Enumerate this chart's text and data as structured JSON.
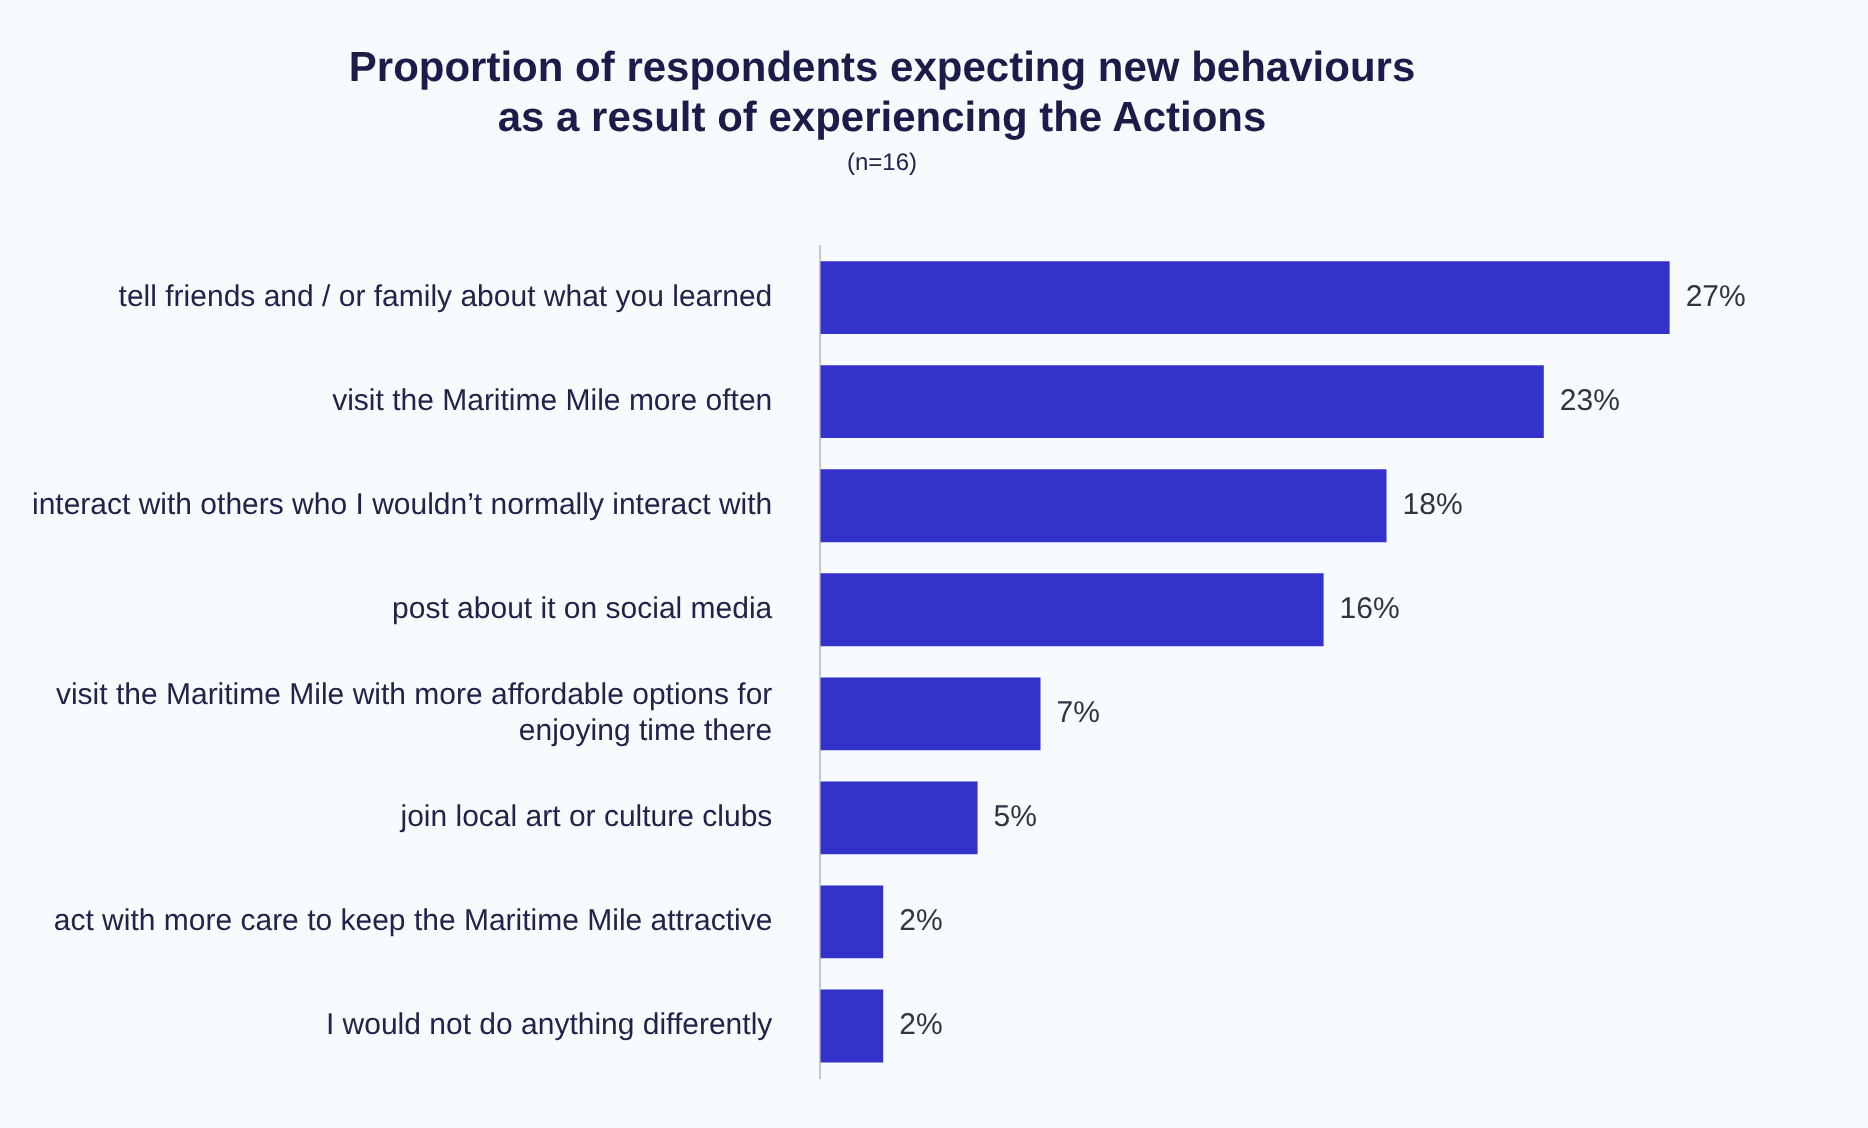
{
  "chart_data": {
    "type": "bar",
    "orientation": "horizontal",
    "title": "Proportion of respondents expecting new behaviours as a result of experiencing the Actions",
    "subtitle": "(n=16)",
    "categories": [
      "tell friends and / or family about what you learned",
      "visit the Maritime Mile more often",
      "interact with others who I wouldn’t normally interact with",
      "post about it on social media",
      "visit the Maritime Mile with more affordable options for enjoying time there",
      "join local art or culture clubs",
      "act with more care to keep the Maritime Mile attractive",
      "I would not do anything differently"
    ],
    "values": [
      27,
      23,
      18,
      16,
      7,
      5,
      2,
      2
    ],
    "value_labels": [
      "27%",
      "23%",
      "18%",
      "16%",
      "7%",
      "5%",
      "2%",
      "2%"
    ],
    "color": "#3333cc",
    "legend": false,
    "tick_labels": "y"
  }
}
